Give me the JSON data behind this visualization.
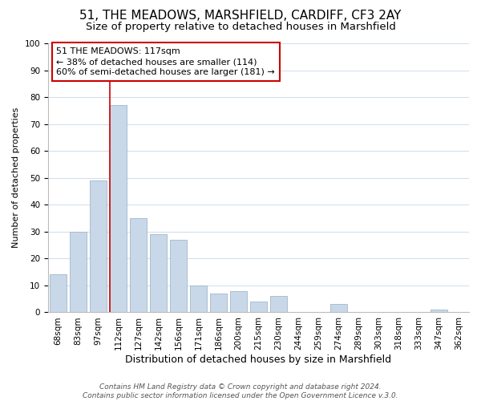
{
  "title": "51, THE MEADOWS, MARSHFIELD, CARDIFF, CF3 2AY",
  "subtitle": "Size of property relative to detached houses in Marshfield",
  "xlabel": "Distribution of detached houses by size in Marshfield",
  "ylabel": "Number of detached properties",
  "bar_labels": [
    "68sqm",
    "83sqm",
    "97sqm",
    "112sqm",
    "127sqm",
    "142sqm",
    "156sqm",
    "171sqm",
    "186sqm",
    "200sqm",
    "215sqm",
    "230sqm",
    "244sqm",
    "259sqm",
    "274sqm",
    "289sqm",
    "303sqm",
    "318sqm",
    "333sqm",
    "347sqm",
    "362sqm"
  ],
  "bar_values": [
    14,
    30,
    49,
    77,
    35,
    29,
    27,
    10,
    7,
    8,
    4,
    6,
    0,
    0,
    3,
    0,
    0,
    0,
    0,
    1,
    0
  ],
  "bar_color": "#c8d8e8",
  "bar_edge_color": "#a0b8cc",
  "vline_index": 3,
  "vline_color": "#cc0000",
  "annotation_line1": "51 THE MEADOWS: 117sqm",
  "annotation_line2": "← 38% of detached houses are smaller (114)",
  "annotation_line3": "60% of semi-detached houses are larger (181) →",
  "annotation_box_color": "#ffffff",
  "annotation_box_edge": "#cc0000",
  "footer_text": "Contains HM Land Registry data © Crown copyright and database right 2024.\nContains public sector information licensed under the Open Government Licence v.3.0.",
  "ylim": [
    0,
    100
  ],
  "title_fontsize": 11,
  "subtitle_fontsize": 9.5,
  "xlabel_fontsize": 9,
  "ylabel_fontsize": 8,
  "tick_fontsize": 7.5,
  "annotation_fontsize": 8,
  "footer_fontsize": 6.5,
  "background_color": "#ffffff",
  "grid_color": "#d0dce8"
}
